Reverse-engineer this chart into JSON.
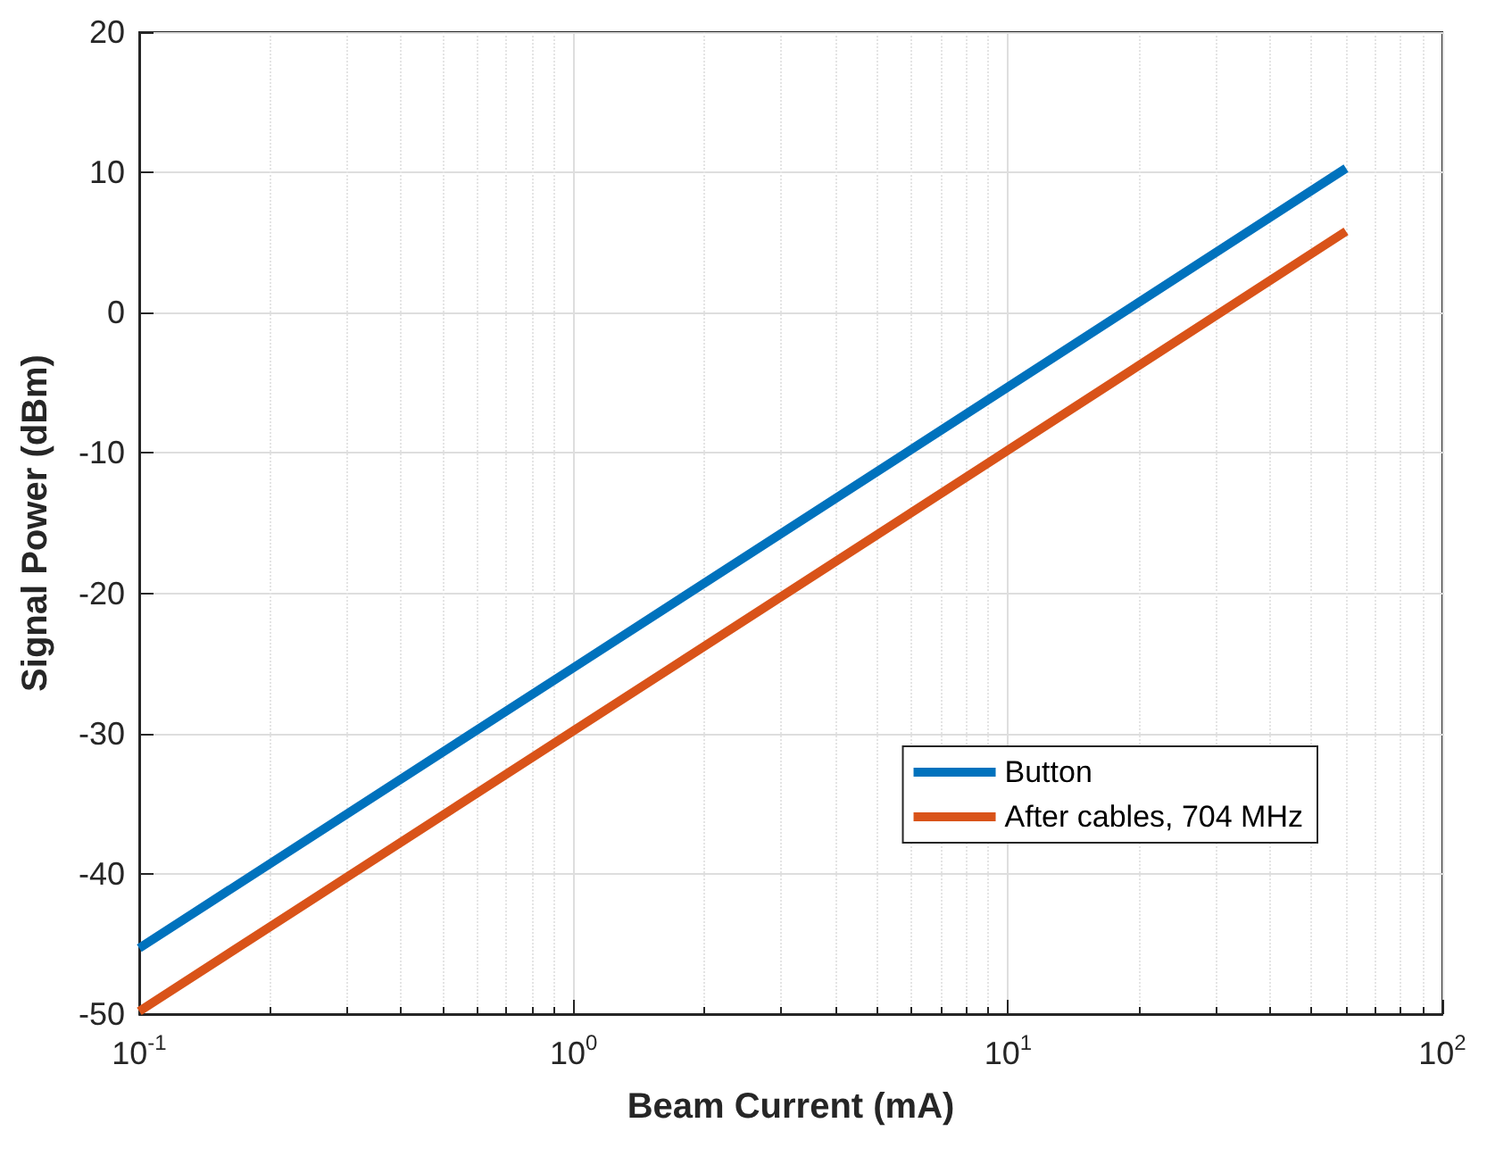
{
  "chart_data": {
    "type": "line",
    "xlabel": "Beam Current (mA)",
    "ylabel": "Signal Power (dBm)",
    "x": [
      0.1,
      1,
      10,
      60
    ],
    "series": [
      {
        "name": "Button",
        "color": "#0072bd",
        "values": [
          -45.3,
          -25.3,
          -5.3,
          10.3
        ]
      },
      {
        "name": "After cables, 704 MHz",
        "color": "#d95319",
        "values": [
          -49.8,
          -29.8,
          -9.8,
          5.8
        ]
      }
    ],
    "log": "x",
    "xlim": [
      0.1,
      100
    ],
    "xticks": [
      {
        "value": 0.1,
        "label": "10$^{-1}$"
      },
      {
        "value": 1,
        "label": "10$^{0}$"
      },
      {
        "value": 10,
        "label": "10$^{1}$"
      },
      {
        "value": 100,
        "label": "10$^{2}$"
      }
    ],
    "ylim": [
      -50,
      20
    ],
    "yticks": [
      -50,
      -40,
      -30,
      -20,
      -10,
      0,
      10,
      20
    ],
    "grid": true,
    "legend": "bottom right",
    "marker": "none",
    "line_style": "solid"
  }
}
